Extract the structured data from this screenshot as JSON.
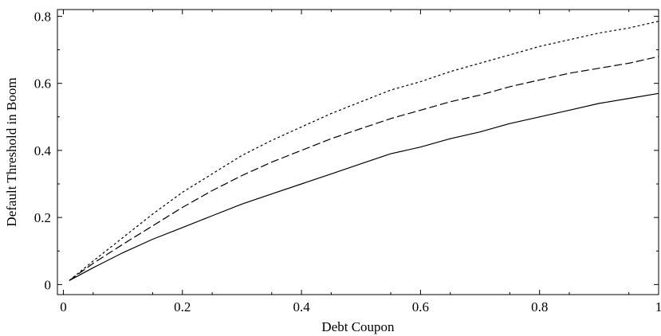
{
  "chart_data": {
    "type": "line",
    "title": "",
    "xlabel": "Debt Coupon",
    "ylabel": "Default Threshold in Boom",
    "xlim": [
      -0.01,
      1.0
    ],
    "ylim": [
      -0.03,
      0.82
    ],
    "xticks": [
      0,
      0.2,
      0.4,
      0.6,
      0.8,
      1.0
    ],
    "xtick_labels": [
      "0",
      "0.2",
      "0.4",
      "0.6",
      "0.8",
      "1"
    ],
    "yticks": [
      0,
      0.2,
      0.4,
      0.6,
      0.8
    ],
    "ytick_labels": [
      "0",
      "0.2",
      "0.4",
      "0.6",
      "0.8"
    ],
    "grid": false,
    "legend": "none",
    "series": [
      {
        "style": "dotted",
        "x": [
          0.01,
          0.05,
          0.1,
          0.15,
          0.2,
          0.25,
          0.3,
          0.35,
          0.4,
          0.45,
          0.5,
          0.55,
          0.6,
          0.65,
          0.7,
          0.75,
          0.8,
          0.85,
          0.9,
          0.95,
          1.0
        ],
        "values": [
          0.012,
          0.07,
          0.14,
          0.21,
          0.275,
          0.33,
          0.385,
          0.43,
          0.47,
          0.51,
          0.545,
          0.58,
          0.605,
          0.635,
          0.66,
          0.685,
          0.71,
          0.73,
          0.75,
          0.765,
          0.785
        ]
      },
      {
        "style": "dashed",
        "x": [
          0.01,
          0.05,
          0.1,
          0.15,
          0.2,
          0.25,
          0.3,
          0.35,
          0.4,
          0.45,
          0.5,
          0.55,
          0.6,
          0.65,
          0.7,
          0.75,
          0.8,
          0.85,
          0.9,
          0.95,
          1.0
        ],
        "values": [
          0.012,
          0.063,
          0.12,
          0.175,
          0.23,
          0.28,
          0.325,
          0.365,
          0.4,
          0.435,
          0.465,
          0.495,
          0.52,
          0.545,
          0.565,
          0.59,
          0.61,
          0.63,
          0.645,
          0.66,
          0.68
        ]
      },
      {
        "style": "solid",
        "x": [
          0.01,
          0.05,
          0.1,
          0.15,
          0.2,
          0.25,
          0.3,
          0.35,
          0.4,
          0.45,
          0.5,
          0.55,
          0.6,
          0.65,
          0.7,
          0.75,
          0.8,
          0.85,
          0.9,
          0.95,
          1.0
        ],
        "values": [
          0.012,
          0.05,
          0.095,
          0.135,
          0.17,
          0.205,
          0.24,
          0.27,
          0.3,
          0.33,
          0.36,
          0.39,
          0.41,
          0.435,
          0.455,
          0.48,
          0.5,
          0.52,
          0.54,
          0.555,
          0.57
        ]
      }
    ]
  }
}
